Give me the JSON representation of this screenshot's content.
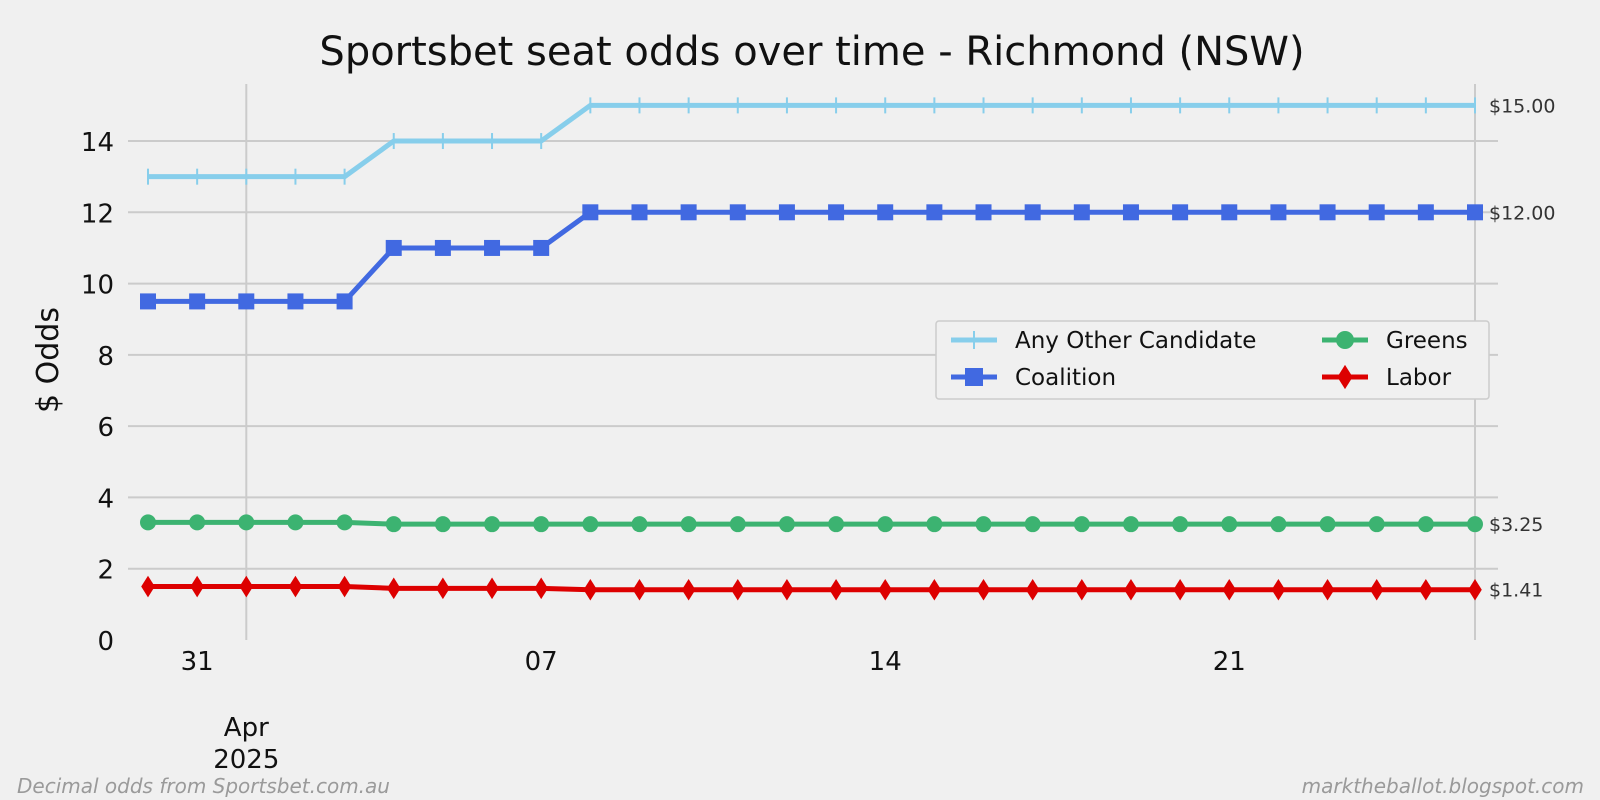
{
  "footer": {
    "left": "Decimal odds from Sportsbet.com.au",
    "right": "marktheballot.blogspot.com"
  },
  "chart_data": {
    "type": "line",
    "title": "Sportsbet seat odds over time - Richmond (NSW)",
    "xlabel": "",
    "ylabel": "$ Odds",
    "ylim": [
      0,
      15.6
    ],
    "y_ticks": [
      0,
      2,
      4,
      6,
      8,
      10,
      12,
      14
    ],
    "x": [
      "2025-03-30",
      "2025-03-31",
      "2025-04-01",
      "2025-04-02",
      "2025-04-03",
      "2025-04-04",
      "2025-04-05",
      "2025-04-06",
      "2025-04-07",
      "2025-04-08",
      "2025-04-09",
      "2025-04-10",
      "2025-04-11",
      "2025-04-12",
      "2025-04-13",
      "2025-04-14",
      "2025-04-15",
      "2025-04-16",
      "2025-04-17",
      "2025-04-18",
      "2025-04-19",
      "2025-04-20",
      "2025-04-21",
      "2025-04-22",
      "2025-04-23",
      "2025-04-24",
      "2025-04-25",
      "2025-04-26"
    ],
    "x_ticks": [
      {
        "date": "2025-03-31",
        "label": "31"
      },
      {
        "date": "2025-04-07",
        "label": "07"
      },
      {
        "date": "2025-04-14",
        "label": "14"
      },
      {
        "date": "2025-04-21",
        "label": "21"
      }
    ],
    "month_tick": {
      "date": "2025-04-01",
      "label_line1": "Apr",
      "label_line2": "2025"
    },
    "x_grid_dates": [
      "2025-04-01",
      "2025-04-26"
    ],
    "grid": true,
    "legend": {
      "placement": "center-right",
      "columns": 2
    },
    "series": [
      {
        "name": "Any Other Candidate",
        "color": "#87ceeb",
        "marker": "plus",
        "values": [
          13,
          13,
          13,
          13,
          13,
          14,
          14,
          14,
          14,
          15,
          15,
          15,
          15,
          15,
          15,
          15,
          15,
          15,
          15,
          15,
          15,
          15,
          15,
          15,
          15,
          15,
          15,
          15
        ],
        "end_label": "$15.00"
      },
      {
        "name": "Coalition",
        "color": "#4169e1",
        "marker": "square",
        "values": [
          9.5,
          9.5,
          9.5,
          9.5,
          9.5,
          11,
          11,
          11,
          11,
          12,
          12,
          12,
          12,
          12,
          12,
          12,
          12,
          12,
          12,
          12,
          12,
          12,
          12,
          12,
          12,
          12,
          12,
          12
        ],
        "end_label": "$12.00"
      },
      {
        "name": "Greens",
        "color": "#3cb371",
        "marker": "circle",
        "values": [
          3.3,
          3.3,
          3.3,
          3.3,
          3.3,
          3.25,
          3.25,
          3.25,
          3.25,
          3.25,
          3.25,
          3.25,
          3.25,
          3.25,
          3.25,
          3.25,
          3.25,
          3.25,
          3.25,
          3.25,
          3.25,
          3.25,
          3.25,
          3.25,
          3.25,
          3.25,
          3.25,
          3.25
        ],
        "end_label": "$3.25"
      },
      {
        "name": "Labor",
        "color": "#dd0000",
        "marker": "diamond",
        "values": [
          1.5,
          1.5,
          1.5,
          1.5,
          1.5,
          1.45,
          1.45,
          1.45,
          1.45,
          1.41,
          1.41,
          1.41,
          1.41,
          1.41,
          1.41,
          1.41,
          1.41,
          1.41,
          1.41,
          1.41,
          1.41,
          1.41,
          1.41,
          1.41,
          1.41,
          1.41,
          1.41,
          1.41
        ],
        "end_label": "$1.41"
      }
    ],
    "legend_order": [
      0,
      1,
      2,
      3
    ]
  }
}
